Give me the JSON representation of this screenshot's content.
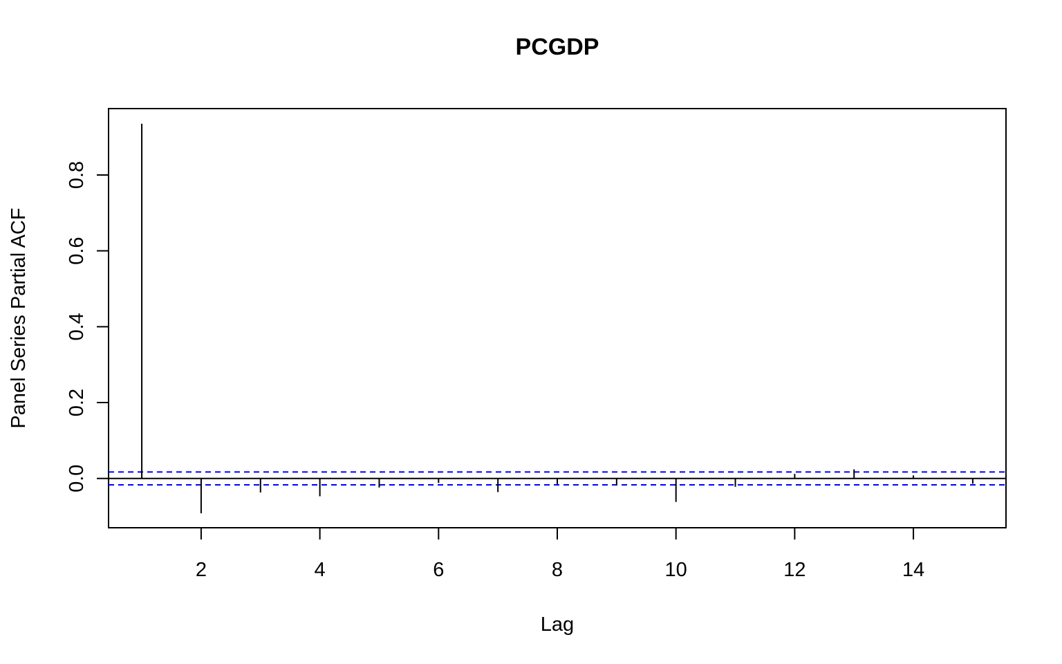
{
  "chart_data": {
    "type": "bar",
    "title": "PCGDP",
    "xlabel": "Lag",
    "ylabel": "Panel Series Partial ACF",
    "xlim": [
      0.44,
      15.56
    ],
    "ylim": [
      -0.13,
      0.975
    ],
    "x_ticks": [
      2,
      4,
      6,
      8,
      10,
      12,
      14
    ],
    "x_tick_labels": [
      "2",
      "4",
      "6",
      "8",
      "10",
      "12",
      "14"
    ],
    "y_ticks": [
      0.0,
      0.2,
      0.4,
      0.6,
      0.8
    ],
    "y_tick_labels": [
      "0.0",
      "0.2",
      "0.4",
      "0.6",
      "0.8"
    ],
    "lags": [
      1,
      2,
      3,
      4,
      5,
      6,
      7,
      8,
      9,
      10,
      11,
      12,
      13,
      14,
      15
    ],
    "values": [
      0.935,
      -0.092,
      -0.037,
      -0.047,
      -0.024,
      -0.012,
      -0.036,
      -0.015,
      -0.018,
      -0.062,
      -0.022,
      0.012,
      0.024,
      0.008,
      -0.014
    ],
    "confidence_bound": 0.017,
    "grid": false,
    "line_color": "#000000",
    "bound_color": "#0000ff"
  }
}
